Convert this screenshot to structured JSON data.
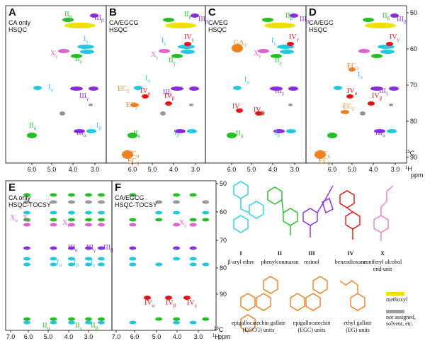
{
  "panels": [
    {
      "letter": "A",
      "lines": [
        "CA only",
        "HSQC"
      ],
      "labels": [
        {
          "text": "II",
          "sub": "β"
        },
        {
          "text": "III",
          "sub": "β"
        },
        {
          "text": "I",
          "sub": "γ"
        },
        {
          "text": "X",
          "sub": "γ"
        },
        {
          "text": "II",
          "sub": "γ"
        },
        {
          "text": "I",
          "sub": "α"
        },
        {
          "text": "III",
          "sub": "γ"
        },
        {
          "text": "II",
          "sub": "α"
        },
        {
          "text": "III",
          "sub": "α"
        },
        {
          "text": "I",
          "sub": "β"
        }
      ],
      "xticks": [
        "6.0",
        "5.0",
        "4.0",
        "3.0"
      ]
    },
    {
      "letter": "B",
      "lines": [
        "CA/EGCG",
        "HSQC"
      ],
      "labels": [
        {
          "text": "II",
          "sub": "β"
        },
        {
          "text": "III",
          "sub": "β"
        },
        {
          "text": "I",
          "sub": "γ"
        },
        {
          "text": "IV",
          "sub": "γ"
        },
        {
          "text": "X",
          "sub": "γ"
        },
        {
          "text": "II",
          "sub": "γ"
        },
        {
          "text": "EC",
          "sub": "3"
        },
        {
          "text": "I",
          "sub": "α"
        },
        {
          "text": "III",
          "sub": "γ"
        },
        {
          "text": "IV",
          "sub": "α"
        },
        {
          "text": "IV",
          "sub": "β"
        },
        {
          "text": "EC",
          "sub": "2"
        },
        {
          "text": "II",
          "sub": "α"
        },
        {
          "text": "I",
          "sub": "β"
        },
        {
          "text": "EC",
          "sub": "6"
        },
        {
          "text": "EC",
          "sub": "8"
        }
      ],
      "xticks": [
        "6.0",
        "5.0",
        "4.0",
        "3.0"
      ]
    },
    {
      "letter": "C",
      "lines": [
        "CA/EG",
        "HSQC"
      ],
      "labels": [
        {
          "text": "II",
          "sub": "β"
        },
        {
          "text": "III",
          "sub": "β"
        },
        {
          "text": "GA",
          "sub": "1"
        },
        {
          "text": "I",
          "sub": "γ"
        },
        {
          "text": "IV",
          "sub": "γ"
        },
        {
          "text": "X",
          "sub": "γ"
        },
        {
          "text": "II",
          "sub": "γ"
        },
        {
          "text": "I",
          "sub": "α"
        },
        {
          "text": "III",
          "sub": "γ"
        },
        {
          "text": "IV",
          "sub": "α"
        },
        {
          "text": "IV",
          "sub": "β"
        },
        {
          "text": "II",
          "sub": "α"
        },
        {
          "text": "I",
          "sub": "β"
        }
      ],
      "xticks": [
        "6.0",
        "5.0",
        "4.0",
        "3.0"
      ]
    },
    {
      "letter": "D",
      "lines": [
        "CA/EGC",
        "HSQC"
      ],
      "labels": [
        {
          "text": "II",
          "sub": "β"
        },
        {
          "text": "III",
          "sub": "β"
        },
        {
          "text": "IV",
          "sub": "γ"
        },
        {
          "text": "EC",
          "sub": "3"
        },
        {
          "text": "I",
          "sub": "α"
        },
        {
          "text": "III",
          "sub": "γ"
        },
        {
          "text": "IV",
          "sub": "α"
        },
        {
          "text": "IV",
          "sub": "β"
        },
        {
          "text": "EC",
          "sub": "2"
        },
        {
          "text": "III",
          "sub": "α"
        },
        {
          "text": "EC",
          "sub": "6"
        },
        {
          "text": "EC",
          "sub": "8"
        }
      ],
      "xticks": [
        "6.0",
        "5.0",
        "4.0",
        "3.0"
      ]
    },
    {
      "letter": "E",
      "lines": [
        "CA only",
        "HSQC-TOCSY"
      ],
      "labels": [
        {
          "text": "X",
          "sub": "α"
        },
        {
          "text": "X",
          "sub": "β"
        },
        {
          "text": "X",
          "sub": "γ"
        },
        {
          "text": "III",
          "sub": "α"
        },
        {
          "text": "III",
          "sub": "γ"
        },
        {
          "text": "III",
          "sub": "β"
        },
        {
          "text": "I",
          "sub": "α"
        },
        {
          "text": "I",
          "sub": "β"
        },
        {
          "text": "I",
          "sub": "γ"
        },
        {
          "text": "II",
          "sub": "α"
        },
        {
          "text": "II",
          "sub": "γ"
        },
        {
          "text": "II",
          "sub": "β"
        }
      ],
      "xticks": [
        "7.0",
        "6.0",
        "5.0",
        "4.0",
        "3.0"
      ]
    },
    {
      "letter": "F",
      "lines": [
        "CA/EGCG",
        "HSQC-TOCSY"
      ],
      "labels": [
        {
          "text": "X",
          "sub": "γ"
        },
        {
          "text": "IV",
          "sub": "α"
        },
        {
          "text": "IV",
          "sub": "β"
        },
        {
          "text": "IV",
          "sub": "γ"
        }
      ],
      "xticks": [
        "7.0",
        "6.0",
        "5.0",
        "4.0",
        "3.0"
      ]
    }
  ],
  "yticks": [
    "50",
    "60",
    "70",
    "80",
    "90"
  ],
  "y_axis_label": {
    "sup": "13",
    "text": "C",
    "unit": "ppm"
  },
  "x_axis_label": {
    "sup": "1",
    "text": "H",
    "unit": "ppm"
  },
  "legend": {
    "units": [
      {
        "num": "I",
        "name": [
          "β-aryl ether"
        ]
      },
      {
        "num": "II",
        "name": [
          "phenylcoumaran"
        ]
      },
      {
        "num": "III",
        "name": [
          "resinol"
        ]
      },
      {
        "num": "IV",
        "name": [
          "benzodioxane"
        ]
      },
      {
        "num": "X",
        "name": [
          "coniferyl alcohol",
          "end-unit"
        ]
      }
    ],
    "catechins": [
      {
        "name": [
          "epigallocatechin gallate",
          "(EGCG) units"
        ]
      },
      {
        "name": [
          "epigallocatechin",
          "(EGC) units"
        ]
      },
      {
        "name": [
          "ethyl gallate",
          "(EG) units"
        ]
      }
    ],
    "keys": [
      {
        "name": [
          "methoxyl"
        ]
      },
      {
        "name": [
          "not assigned,",
          "solvent, etc."
        ]
      }
    ]
  }
}
